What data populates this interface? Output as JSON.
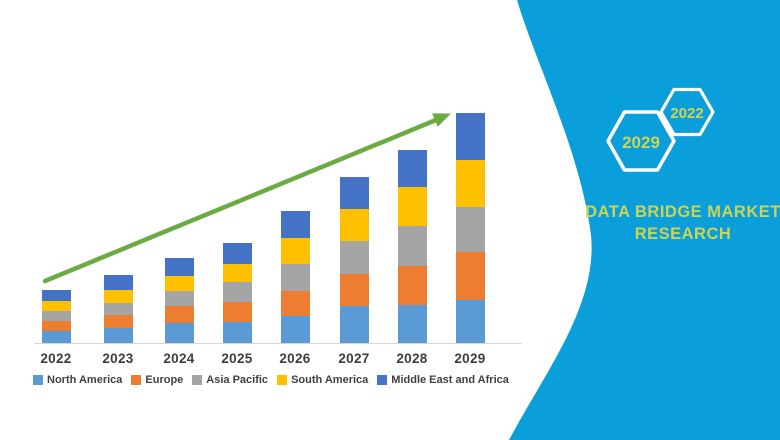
{
  "brand": {
    "name_line1": "DATA BRIDGE MARKET",
    "name_line2": "RESEARCH",
    "hex_large_label": "2029",
    "hex_small_label": "2022",
    "panel_color": "#0A9EDA",
    "text_color": "#CDD550",
    "hex_outline_color": "#FFFFFF"
  },
  "chart_data": {
    "type": "bar",
    "stacked": true,
    "title": "",
    "xlabel": "",
    "ylabel": "",
    "grid": false,
    "legend_position": "bottom",
    "y_axis_shown": false,
    "y_units": "arbitrary units (no axis labels shown)",
    "categories": [
      "2022",
      "2023",
      "2024",
      "2025",
      "2026",
      "2027",
      "2028",
      "2029"
    ],
    "series": [
      {
        "name": "North America",
        "color": "#5B9BD5",
        "values": [
          12,
          15,
          20,
          21,
          27,
          37,
          38,
          43
        ]
      },
      {
        "name": "Europe",
        "color": "#ED7D31",
        "values": [
          10,
          13,
          17,
          20,
          25,
          32,
          39,
          48
        ]
      },
      {
        "name": "Asia Pacific",
        "color": "#A5A5A5",
        "values": [
          10,
          12,
          15,
          20,
          27,
          33,
          40,
          45
        ]
      },
      {
        "name": "South America",
        "color": "#FFC000",
        "values": [
          10,
          13,
          15,
          18,
          26,
          32,
          39,
          47
        ]
      },
      {
        "name": "Middle East and Africa",
        "color": "#4472C4",
        "values": [
          11,
          15,
          18,
          21,
          27,
          32,
          37,
          47
        ]
      }
    ],
    "stack_totals": [
      53,
      68,
      85,
      100,
      132,
      166,
      193,
      230
    ],
    "trend_arrow": {
      "color": "#6AAB44",
      "from_category": "2022",
      "to_category": "2029",
      "direction": "up-right"
    }
  }
}
